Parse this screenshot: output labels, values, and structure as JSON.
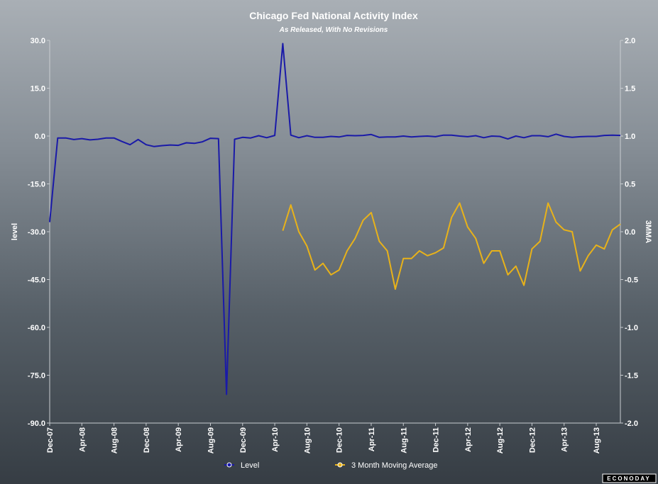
{
  "chart_data": {
    "type": "line",
    "title": "Chicago Fed National Activity Index",
    "subtitle": "As Released, With No Revisions",
    "y_left": {
      "label": "level",
      "min": -90,
      "max": 30,
      "ticks": [
        "30.0",
        "15.0",
        "0.0",
        "-15.0",
        "-30.0",
        "-45.0",
        "-60.0",
        "-75.0",
        "-90.0"
      ]
    },
    "y_right": {
      "label": "3MMA",
      "min": -2.0,
      "max": 2.0,
      "ticks": [
        "2.0",
        "1.5",
        "1.0",
        "0.5",
        "0.0",
        "-0.5",
        "-1.0",
        "-1.5",
        "-2.0"
      ]
    },
    "x_tick_labels": [
      "Dec-07",
      "Apr-08",
      "Aug-08",
      "Dec-08",
      "Apr-09",
      "Aug-09",
      "Dec-09",
      "Apr-10",
      "Aug-10",
      "Dec-10",
      "Apr-11",
      "Aug-11",
      "Dec-11",
      "Apr-12",
      "Aug-12",
      "Dec-12",
      "Apr-13",
      "Aug-13"
    ],
    "x_tick_start_index": 0,
    "x_tick_step": 4,
    "periods": 72,
    "series": [
      {
        "name": "Level",
        "axis": "left",
        "color": "#1a1aa8",
        "values": [
          -27,
          -0.6,
          -0.6,
          -1.1,
          -0.8,
          -1.2,
          -1,
          -0.6,
          -0.6,
          -1.7,
          -2.7,
          -1.1,
          -2.7,
          -3.3,
          -3,
          -2.8,
          -2.9,
          -2.1,
          -2.3,
          -1.8,
          -0.7,
          -0.8,
          -81,
          -1,
          -0.4,
          -0.6,
          0.1,
          -0.5,
          0.2,
          29,
          0.3,
          -0.5,
          0.1,
          -0.4,
          -0.4,
          -0.1,
          -0.3,
          0.2,
          0.1,
          0.2,
          0.5,
          -0.4,
          -0.3,
          -0.3,
          0,
          -0.3,
          -0.1,
          0,
          -0.2,
          0.3,
          0.3,
          0,
          -0.2,
          0.1,
          -0.5,
          0,
          -0.1,
          -0.9,
          0,
          -0.5,
          0.1,
          0.1,
          -0.2,
          0.6,
          -0.1,
          -0.4,
          -0.2,
          -0.1,
          -0.1,
          0.2,
          0.3,
          0.2
        ]
      },
      {
        "name": "3 Month Moving Average",
        "axis": "right",
        "color": "#e8b21a",
        "start_index": 29,
        "values": [
          0.01,
          0.28,
          0.0,
          -0.15,
          -0.4,
          -0.33,
          -0.45,
          -0.4,
          -0.2,
          -0.07,
          0.12,
          0.2,
          -0.1,
          -0.2,
          -0.6,
          -0.28,
          -0.28,
          -0.2,
          -0.25,
          -0.22,
          -0.17,
          0.15,
          0.3,
          0.05,
          -0.07,
          -0.33,
          -0.2,
          -0.2,
          -0.45,
          -0.36,
          -0.56,
          -0.18,
          -0.1,
          0.3,
          0.1,
          0.02,
          0.0,
          -0.41,
          -0.25,
          -0.14,
          -0.18,
          0.02,
          0.08
        ]
      }
    ],
    "legend_position": "bottom"
  },
  "logo": "ECONODAY"
}
